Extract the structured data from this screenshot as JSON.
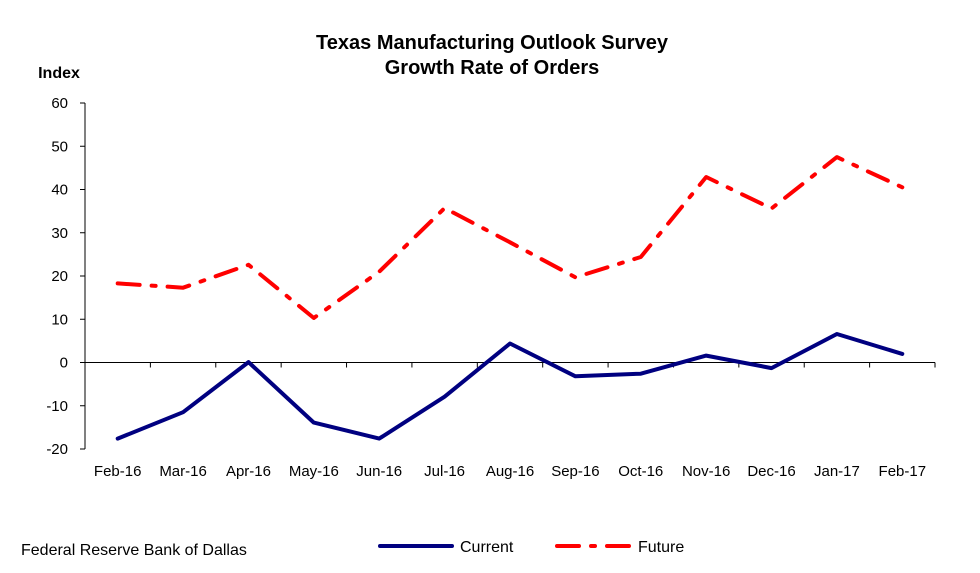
{
  "source": "Federal Reserve Bank of Dallas",
  "chart_data": {
    "type": "line",
    "title": "Texas Manufacturing Outlook Survey",
    "subtitle": "Growth Rate of Orders",
    "ylabel": "Index",
    "xlabel": "",
    "ylim": [
      -20,
      60
    ],
    "yticks": [
      -20,
      -10,
      0,
      10,
      20,
      30,
      40,
      50,
      60
    ],
    "categories": [
      "Feb-16",
      "Mar-16",
      "Apr-16",
      "May-16",
      "Jun-16",
      "Jul-16",
      "Aug-16",
      "Sep-16",
      "Oct-16",
      "Nov-16",
      "Dec-16",
      "Jan-17",
      "Feb-17"
    ],
    "grid": false,
    "legend_position": "bottom",
    "series": [
      {
        "name": "Current",
        "color": "#000080",
        "style": "solid",
        "values": [
          -17.6,
          -11.5,
          0.1,
          -13.9,
          -17.6,
          -7.9,
          4.4,
          -3.2,
          -2.6,
          1.6,
          -1.3,
          6.6,
          2.0
        ]
      },
      {
        "name": "Future",
        "color": "#ff0000",
        "style": "dash-dot",
        "values": [
          18.3,
          17.3,
          22.6,
          10.3,
          21.0,
          35.7,
          27.8,
          19.7,
          24.4,
          42.9,
          35.6,
          47.5,
          40.5
        ]
      }
    ]
  }
}
